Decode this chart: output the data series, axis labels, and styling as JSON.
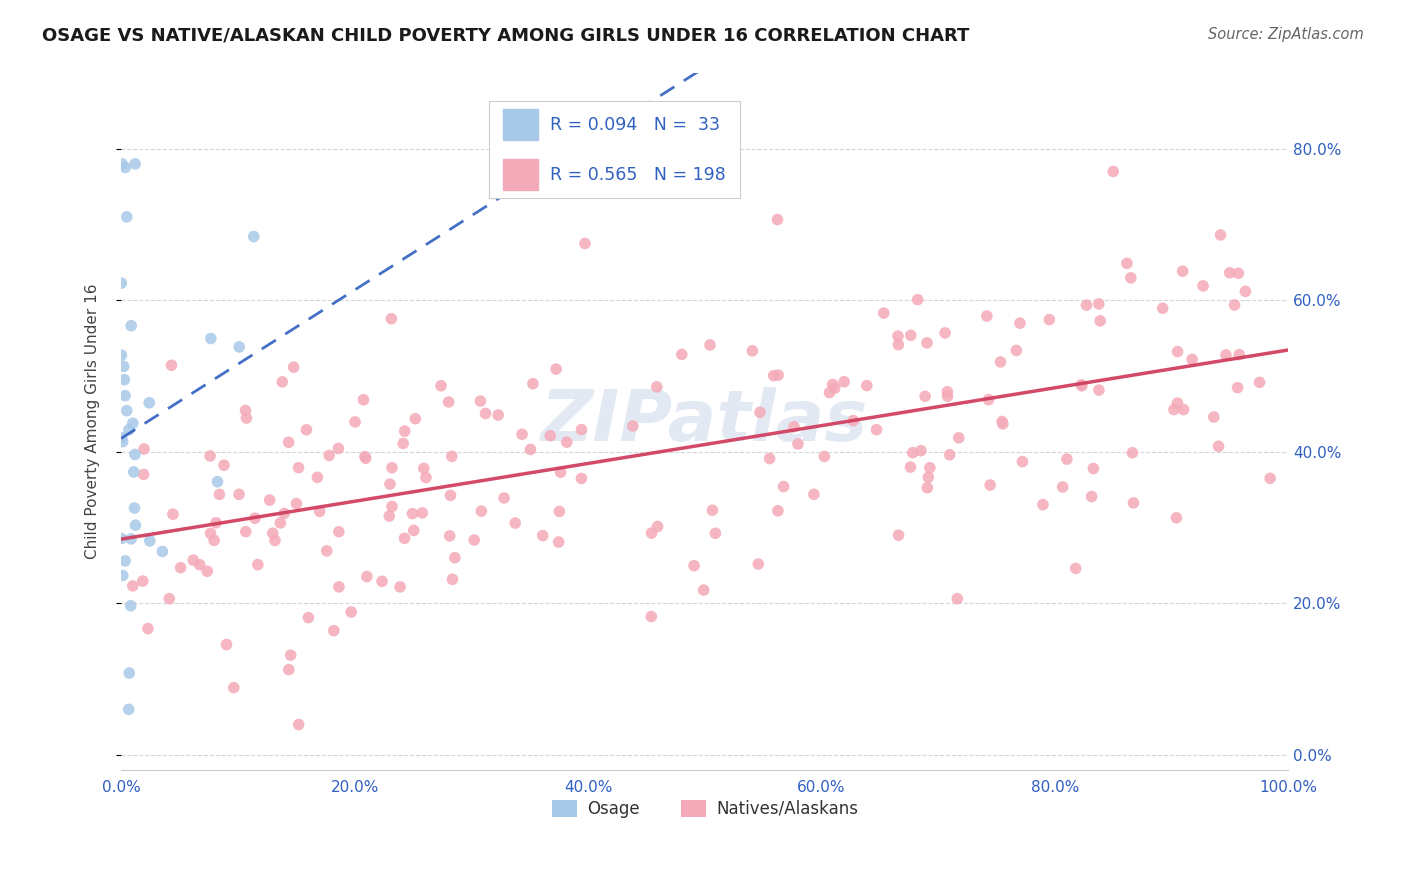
{
  "title": "OSAGE VS NATIVE/ALASKAN CHILD POVERTY AMONG GIRLS UNDER 16 CORRELATION CHART",
  "source": "Source: ZipAtlas.com",
  "ylabel": "Child Poverty Among Girls Under 16",
  "background_color": "#ffffff",
  "watermark": "ZIPatlas",
  "legend_labels": [
    "Osage",
    "Natives/Alaskans"
  ],
  "osage_color": "#a8c8e8",
  "native_color": "#f4aab8",
  "osage_line_color": "#3060c0",
  "native_line_color": "#d04060",
  "osage_R": 0.094,
  "osage_N": 33,
  "native_R": 0.565,
  "native_N": 198,
  "legend_text_color": "#3060c0",
  "xmin": 0.0,
  "xmax": 1.0,
  "ymin": -0.02,
  "ymax": 0.9,
  "yticks": [
    0.0,
    0.2,
    0.4,
    0.6,
    0.8
  ],
  "xticks": [
    0.0,
    0.2,
    0.4,
    0.6,
    0.8,
    1.0
  ],
  "grid_color": "#cccccc",
  "title_fontsize": 13,
  "tick_fontsize": 11,
  "ylabel_fontsize": 11
}
